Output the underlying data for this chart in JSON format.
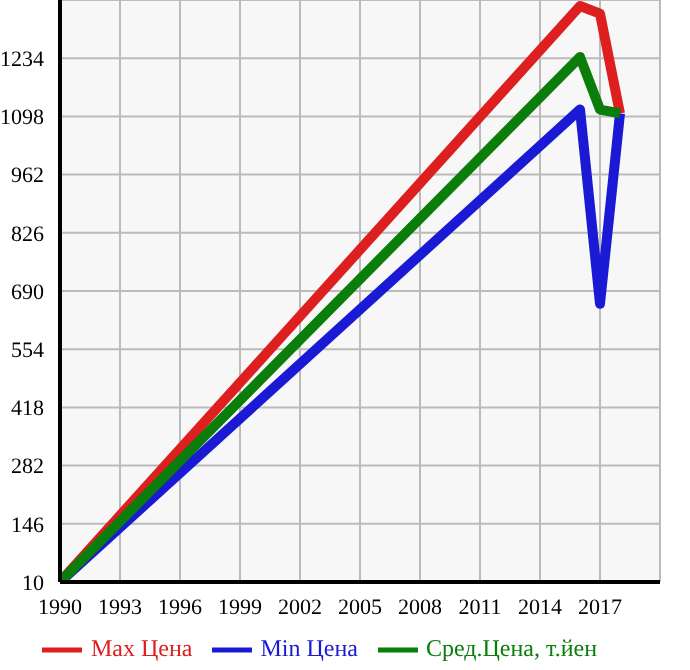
{
  "chart_data": {
    "type": "line",
    "x": [
      1990,
      2016,
      2017,
      2018
    ],
    "series": [
      {
        "name": "Max Цена",
        "color": "#dd1f1f",
        "values": [
          10,
          1356,
          1338,
          1105
        ]
      },
      {
        "name": "Min Цена",
        "color": "#1a1ad4",
        "values": [
          10,
          1114,
          660,
          1105
        ]
      },
      {
        "name": "Сред.Цена, т.йен",
        "color": "#0a7d0a",
        "values": [
          10,
          1237,
          1114,
          1105
        ]
      }
    ],
    "xlim": [
      1990,
      2020
    ],
    "xticks": [
      1990,
      1993,
      1996,
      1999,
      2002,
      2005,
      2008,
      2011,
      2014,
      2017
    ],
    "ylim": [
      10,
      1370
    ],
    "yticks": [
      10,
      146,
      282,
      418,
      554,
      690,
      826,
      962,
      1098,
      1234
    ],
    "grid": true,
    "legend": "bottom",
    "marker": "none",
    "line_style": "solid"
  }
}
